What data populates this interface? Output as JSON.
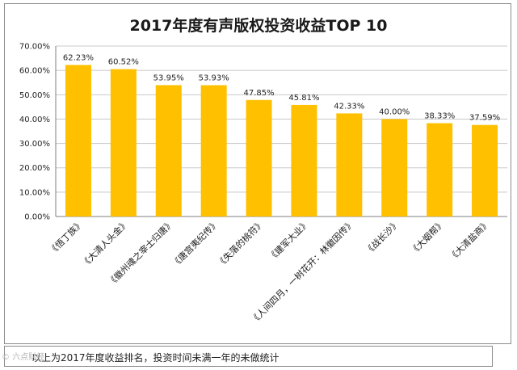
{
  "chart_data": {
    "type": "bar",
    "title": "2017年度有声版权投资收益TOP 10",
    "xlabel": "",
    "ylabel": "",
    "ylim": [
      0,
      70
    ],
    "yticks": [
      "0.00%",
      "10.00%",
      "20.00%",
      "30.00%",
      "40.00%",
      "50.00%",
      "60.00%",
      "70.00%"
    ],
    "categories": [
      "《悟丁族》",
      "《大清人头金》",
      "《徽州魂之宰士归唐》",
      "《唐宫夷纪传》",
      "《失落的桃符》",
      "《建军大业》",
      "《人间四月，一树花开：林徽因传》",
      "《战长沙》",
      "《大烟帮》",
      "《大清盐商》"
    ],
    "values": [
      62.23,
      60.52,
      53.95,
      53.93,
      47.85,
      45.81,
      42.33,
      40.0,
      38.33,
      37.59
    ],
    "data_labels": [
      "62.23%",
      "60.52%",
      "53.95%",
      "53.93%",
      "47.85%",
      "45.81%",
      "42.33%",
      "40.00%",
      "38.33%",
      "37.59%"
    ],
    "grid": true,
    "legend": "none",
    "bar_color": "#ffc000"
  },
  "footnote": "以上为2017年度收益排名，投资时间未满一年的未做统计",
  "watermark": "© 六点财经"
}
